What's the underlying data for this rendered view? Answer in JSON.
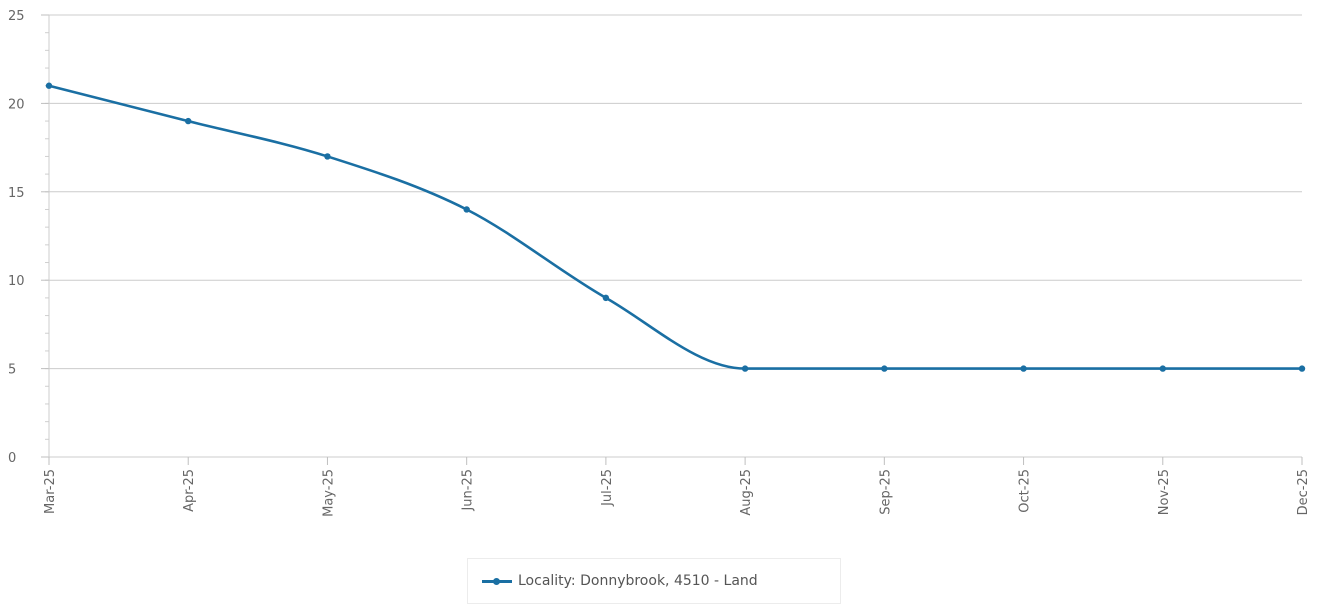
{
  "chart_data": {
    "type": "line",
    "categories": [
      "Mar-25",
      "Apr-25",
      "May-25",
      "Jun-25",
      "Jul-25",
      "Aug-25",
      "Sep-25",
      "Oct-25",
      "Nov-25",
      "Dec-25"
    ],
    "series": [
      {
        "name": "Locality: Donnybrook, 4510 - Land",
        "values": [
          21,
          19,
          17,
          14,
          9,
          5,
          5,
          5,
          5,
          5
        ],
        "color": "#1a6fa3"
      }
    ],
    "yticks": [
      "0",
      "5",
      "10",
      "15",
      "20",
      "25"
    ],
    "ylim": [
      0,
      25
    ],
    "grid": true,
    "smooth": true,
    "legend_position": "bottom-center"
  }
}
